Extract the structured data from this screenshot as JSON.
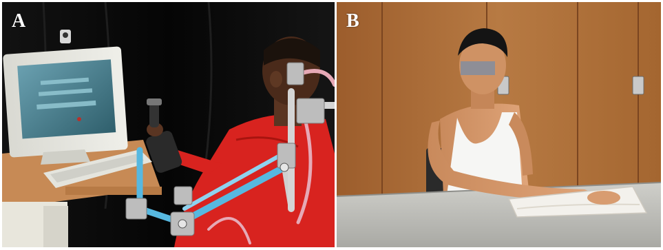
{
  "figure": {
    "panels": [
      {
        "label": "A"
      },
      {
        "label": "B"
      }
    ]
  },
  "colors": {
    "frame": "#ffffff",
    "curtain": "#0c0c0c",
    "shirt_red": "#d8231f",
    "robot_blue": "#57b8e0",
    "wood_wall": "#a86a35",
    "table_top": "#bdbdb8",
    "towel": "#f3f1ec"
  }
}
